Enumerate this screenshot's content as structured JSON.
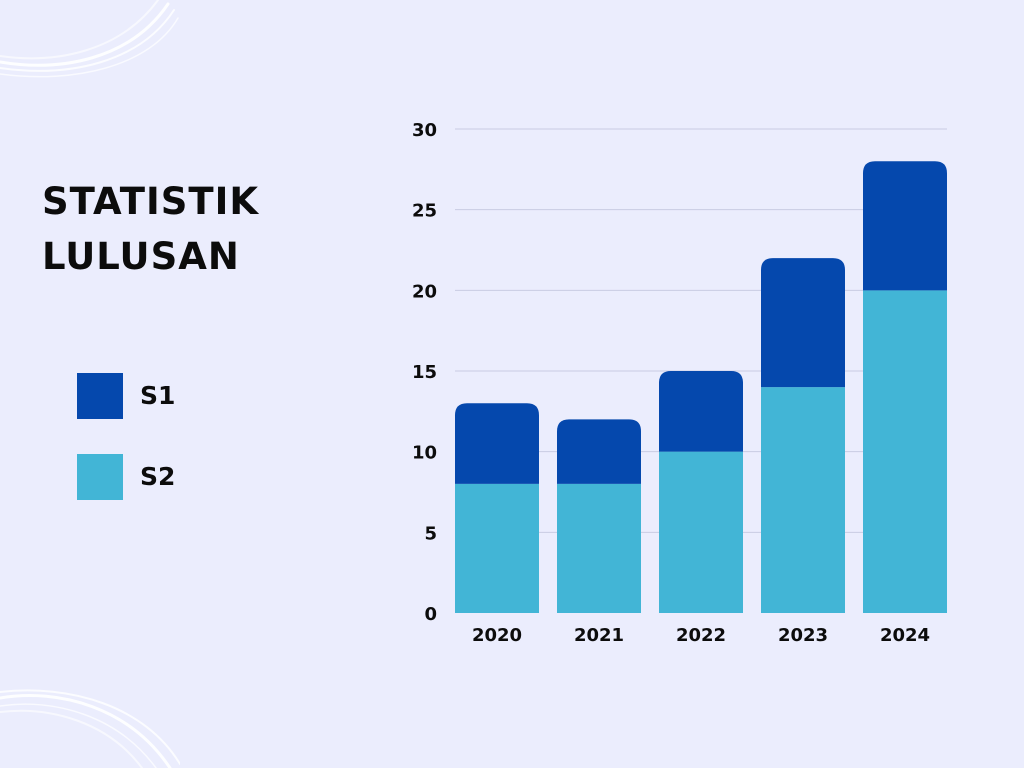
{
  "title_lines": [
    "STATISTIK",
    "LULUSAN"
  ],
  "chart_data": {
    "type": "bar",
    "stacked": true,
    "categories": [
      "2020",
      "2021",
      "2022",
      "2023",
      "2024"
    ],
    "series": [
      {
        "name": "S2",
        "values": [
          8,
          8,
          10,
          14,
          20
        ],
        "color": "#42b5d6"
      },
      {
        "name": "S1",
        "values": [
          5,
          4,
          5,
          8,
          8
        ],
        "color": "#0548ad"
      }
    ],
    "ylim": [
      0,
      30
    ],
    "yticks": [
      0,
      5,
      10,
      15,
      20,
      25,
      30
    ],
    "grid": true,
    "legend_placement": "left"
  },
  "legend": [
    {
      "label": "S1",
      "color": "#0548ad"
    },
    {
      "label": "S2",
      "color": "#42b5d6"
    }
  ],
  "colors": {
    "background": "#ebedfd",
    "text": "#0c0c0c",
    "grid": "#c9cce3"
  }
}
